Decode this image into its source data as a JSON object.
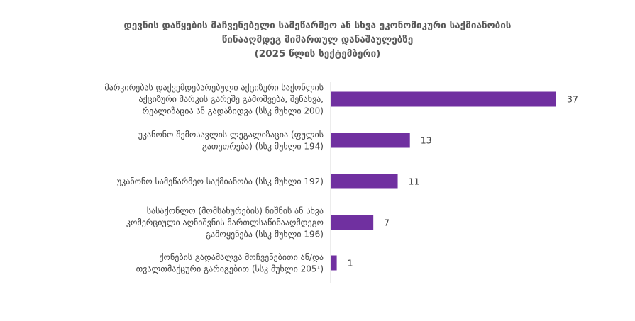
{
  "chart_data": {
    "type": "bar",
    "orientation": "horizontal",
    "title": [
      "დევნის დაწყების მაჩვენებელი სამეწარმეო ან სხვა ეკონომიკური საქმიანობის",
      "წინააღმდეგ მიმართულ დანაშაულებზე",
      "(2025 წლის სექტემბერი)"
    ],
    "categories": [
      [
        "მარკირებას დაქვემდებარებული აქციზური საქონლის",
        "აქციზური მარკის გარეშე გამოშვება, შენახვა,",
        "რეალიზაცია ან გადაზიდვა (სსკ  მუხლი 200)"
      ],
      [
        "უკანონო შემოსავლის ლეგალიზაცია (ფულის",
        "გათეთრება) (სსკ მუხლი 194)"
      ],
      [
        "უკანონო სამეწარმეო საქმიანობა (სსკ  მუხლი 192)"
      ],
      [
        "სასაქონლო (მომსახურების) ნიშნის ან სხვა",
        "კომერციული აღნიშვნის მართლსაწინააღმდეგო",
        "გამოყენება (სსკ  მუხლი 196)"
      ],
      [
        "ქონების გადამალვა მოჩვენებითი ან/და",
        "თვალთმაქცური გარიგებით (სსკ  მუხლი 205¹)"
      ]
    ],
    "values": [
      37,
      13,
      11,
      7,
      1
    ],
    "xlim": [
      0,
      40
    ],
    "grid": false,
    "legend": "none",
    "data_labels": true,
    "bar_color": "#7030A0"
  }
}
